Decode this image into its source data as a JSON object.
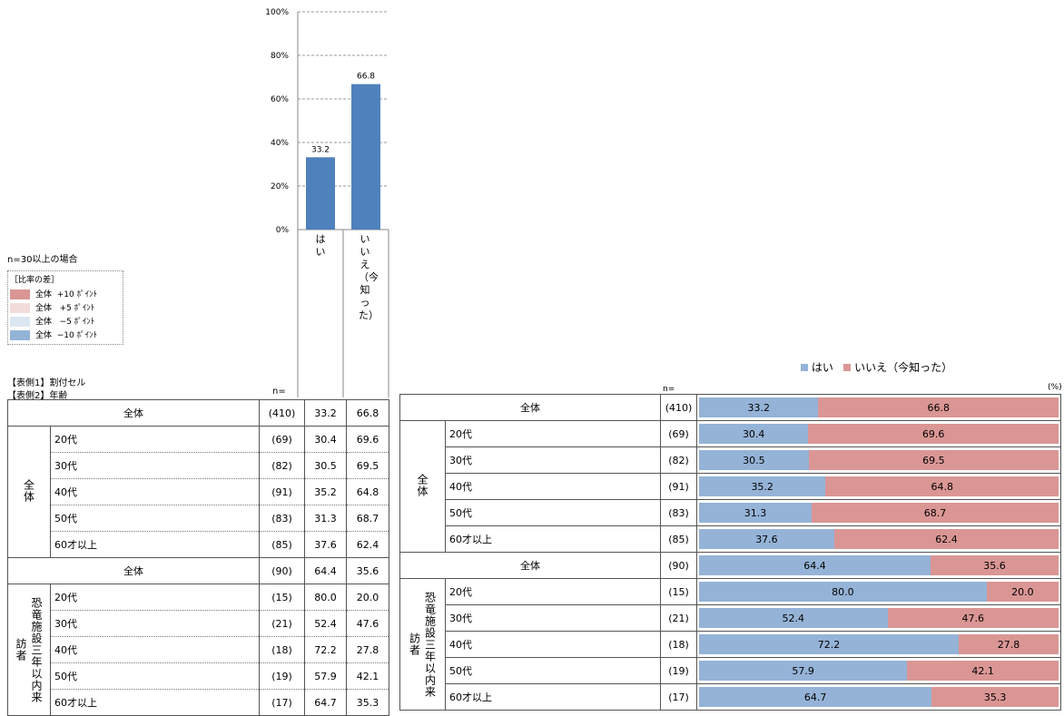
{
  "colors": {
    "hai": "#4F81BD",
    "hai_light": "#95B3D7",
    "iie": "#DA9694",
    "plus10": "#DA9694",
    "plus5": "#F2DCDB",
    "minus5": "#DCE6F1",
    "minus10": "#95B3D7"
  },
  "notes": {
    "n30": "n=30以上の場合",
    "diff_title": "［比率の差］",
    "diff_items": [
      {
        "label": "全体",
        "value": "+10 ﾎﾟｲﾝﾄ"
      },
      {
        "label": "全体",
        "value": "+5 ﾎﾟｲﾝﾄ"
      },
      {
        "label": "全体",
        "value": "−5 ﾎﾟｲﾝﾄ"
      },
      {
        "label": "全体",
        "value": "−10 ﾎﾟｲﾝﾄ"
      }
    ],
    "side1": "【表側1】割付セル",
    "side2": "【表側2】年齢",
    "n_label": "n=",
    "percent_unit": "(%)"
  },
  "legend": {
    "hai": "はい",
    "iie": "いいえ（今知った）"
  },
  "chart_data": [
    {
      "type": "bar",
      "categories": [
        "はい",
        "いいえ（今知った）"
      ],
      "values": [
        33.2,
        66.8
      ],
      "ylim": [
        0,
        100
      ],
      "yticks": [
        "0%",
        "20%",
        "40%",
        "60%",
        "80%",
        "100%"
      ],
      "grid": true
    },
    {
      "type": "bar",
      "stacked": true,
      "orientation": "horizontal",
      "series": [
        {
          "name": "はい",
          "values": [
            33.2,
            30.4,
            30.5,
            35.2,
            31.3,
            37.6,
            64.4,
            80.0,
            52.4,
            72.2,
            57.9,
            64.7
          ]
        },
        {
          "name": "いいえ（今知った）",
          "values": [
            66.8,
            69.6,
            69.5,
            64.8,
            68.7,
            62.4,
            35.6,
            20.0,
            47.6,
            27.8,
            42.1,
            35.3
          ]
        }
      ],
      "categories": [
        "全体",
        "20代",
        "30代",
        "40代",
        "50代",
        "60才以上",
        "全体",
        "20代",
        "30代",
        "40代",
        "50代",
        "60才以上"
      ]
    }
  ],
  "groups": [
    {
      "label": "全体",
      "total": {
        "label": "全体",
        "n": "(410)",
        "hai": "33.2",
        "iie": "66.8"
      },
      "rows": [
        {
          "label": "20代",
          "n": "(69)",
          "hai": "30.4",
          "iie": "69.6"
        },
        {
          "label": "30代",
          "n": "(82)",
          "hai": "30.5",
          "iie": "69.5"
        },
        {
          "label": "40代",
          "n": "(91)",
          "hai": "35.2",
          "iie": "64.8"
        },
        {
          "label": "50代",
          "n": "(83)",
          "hai": "31.3",
          "iie": "68.7"
        },
        {
          "label": "60才以上",
          "n": "(85)",
          "hai": "37.6",
          "iie": "62.4"
        }
      ]
    },
    {
      "label_col1": "恐竜施設三年以内来",
      "label_col2": "訪者",
      "total": {
        "label": "全体",
        "n": "(90)",
        "hai": "64.4",
        "iie": "35.6"
      },
      "rows": [
        {
          "label": "20代",
          "n": "(15)",
          "hai": "80.0",
          "iie": "20.0"
        },
        {
          "label": "30代",
          "n": "(21)",
          "hai": "52.4",
          "iie": "47.6"
        },
        {
          "label": "40代",
          "n": "(18)",
          "hai": "72.2",
          "iie": "27.8"
        },
        {
          "label": "50代",
          "n": "(19)",
          "hai": "57.9",
          "iie": "42.1"
        },
        {
          "label": "60才以上",
          "n": "(17)",
          "hai": "64.7",
          "iie": "35.3"
        }
      ]
    }
  ]
}
